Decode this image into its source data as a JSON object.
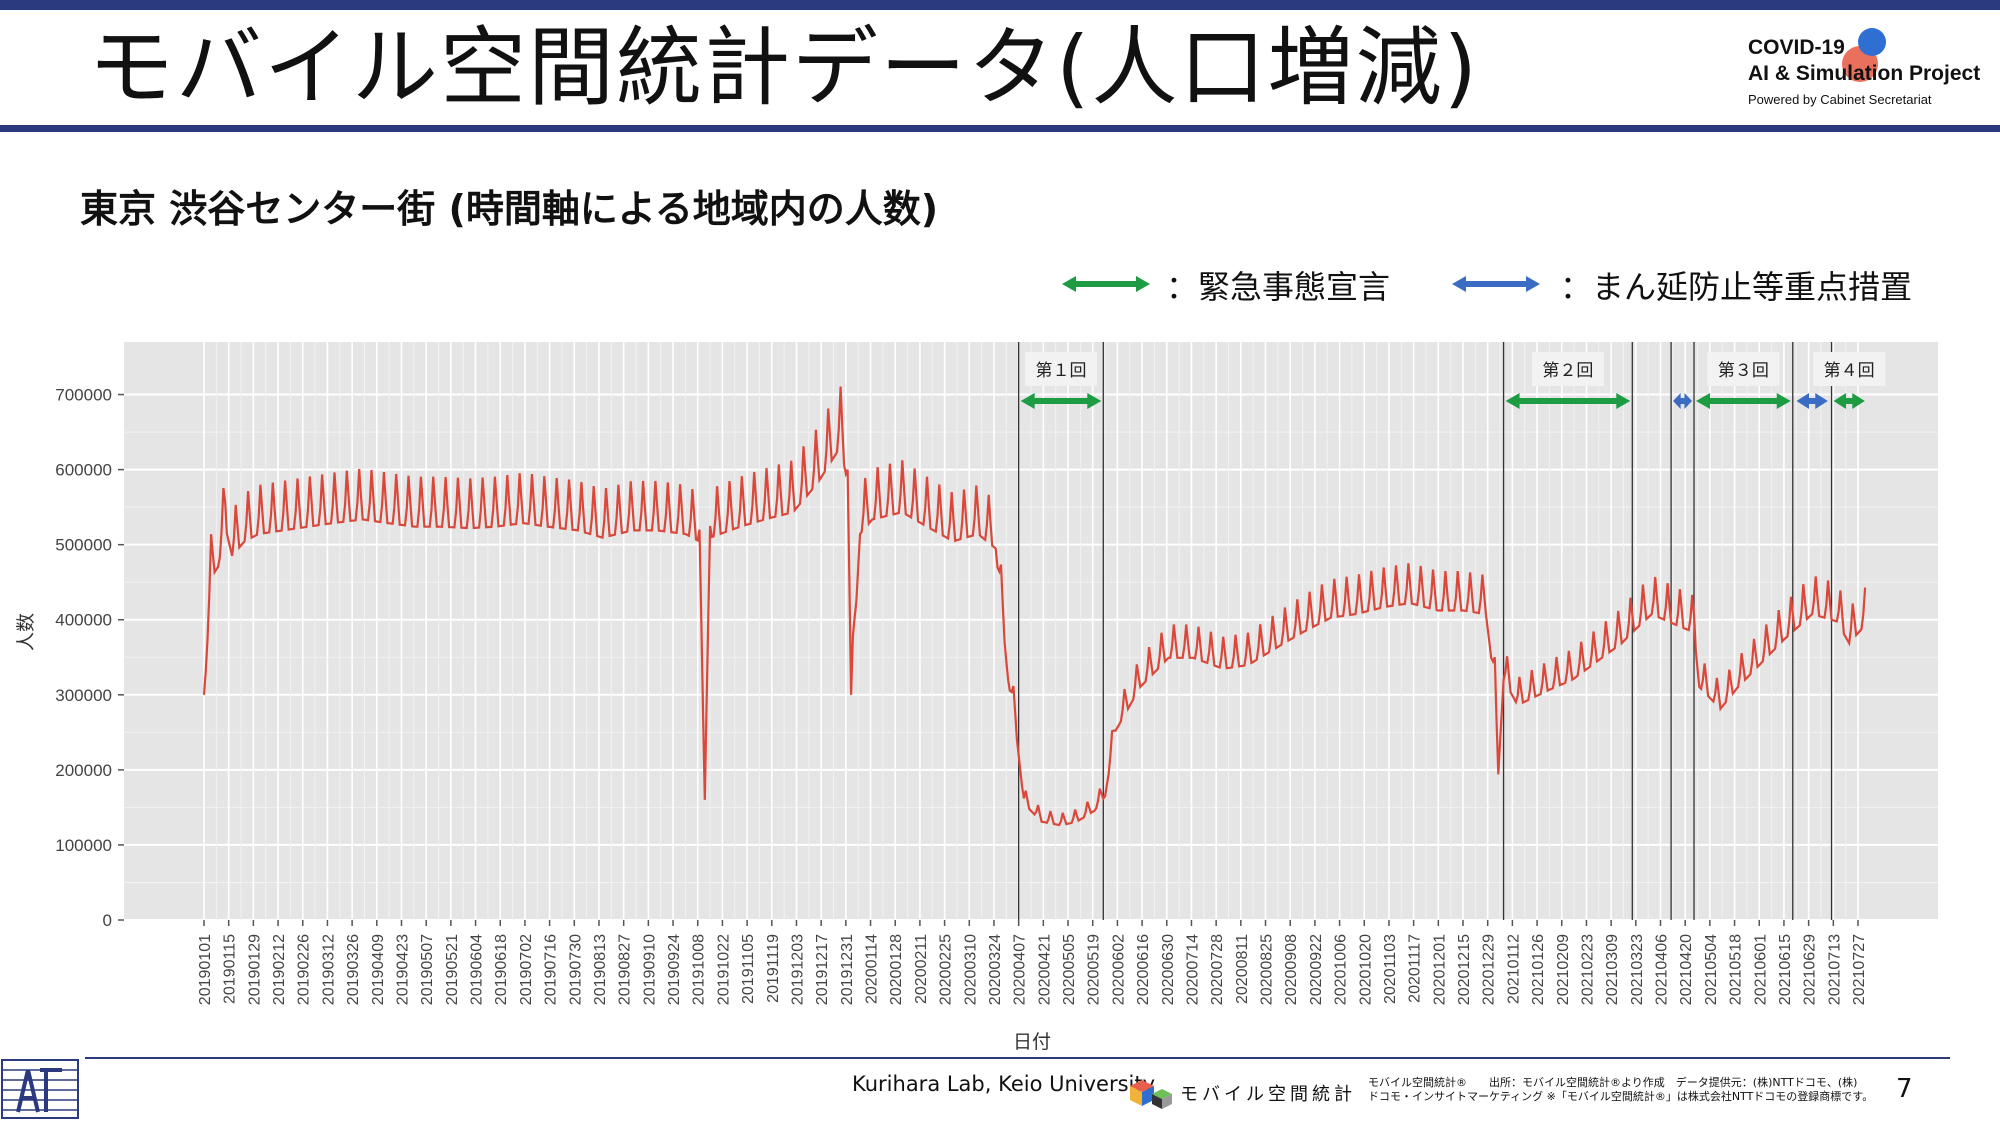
{
  "slide": {
    "title": "モバイル空間統計データ(人口増減)",
    "subtitle": "東京 渋谷センター街 (時間軸による地域内の人数)",
    "page_number": "7"
  },
  "brand": {
    "line1": "COVID-19",
    "line2": "AI & Simulation Project",
    "line3": "Powered by Cabinet Secretariat"
  },
  "legend": {
    "emergency_label": "：緊急事態宣言",
    "emergency_color": "#1e9c44",
    "priority_label": "：まん延防止等重点措置",
    "priority_color": "#3b6cc4"
  },
  "footer": {
    "lab": "Kurihara Lab, Keio University",
    "mobile_logo_text": "モバイル空間統計",
    "source_line1": "モバイル空間統計®　　出所：モバイル空間統計®より作成　データ提供元：(株)NTTドコモ、(株)",
    "source_line2": "ドコモ・インサイトマーケティング ※「モバイル空間統計®」は株式会社NTTドコモの登録商標です。"
  },
  "chart_data": {
    "type": "line",
    "xlabel": "日付",
    "ylabel": "人数",
    "ylim": [
      0,
      770000
    ],
    "yticks": [
      0,
      100000,
      200000,
      300000,
      400000,
      500000,
      600000,
      700000
    ],
    "ytick_labels": [
      "0",
      "100000",
      "200000",
      "300000",
      "400000",
      "500000",
      "600000",
      "700000"
    ],
    "x_start": "2019-01-01",
    "x_end": "2021-08-01",
    "xtick_labels": [
      "20190101",
      "20190115",
      "20190129",
      "20190212",
      "20190226",
      "20190312",
      "20190326",
      "20190409",
      "20190423",
      "20190507",
      "20190521",
      "20190604",
      "20190618",
      "20190702",
      "20190716",
      "20190730",
      "20190813",
      "20190827",
      "20190910",
      "20190924",
      "20191008",
      "20191022",
      "20191105",
      "20191119",
      "20191203",
      "20191217",
      "20191231",
      "20200114",
      "20200128",
      "20200211",
      "20200225",
      "20200310",
      "20200324",
      "20200407",
      "20200421",
      "20200505",
      "20200519",
      "20200602",
      "20200616",
      "20200630",
      "20200714",
      "20200728",
      "20200811",
      "20200825",
      "20200908",
      "20200922",
      "20201006",
      "20201020",
      "20201103",
      "20201117",
      "20201201",
      "20201215",
      "20201229",
      "20210112",
      "20210126",
      "20210209",
      "20210223",
      "20210309",
      "20210323",
      "20210406",
      "20210420",
      "20210504",
      "20210518",
      "20210601",
      "20210615",
      "20210629",
      "20210713",
      "20210727"
    ],
    "grid": true,
    "background": "#e5e5e5",
    "series": [
      {
        "color": "#d9483b",
        "points": [
          [
            "2019-01-01",
            300000
          ],
          [
            "2019-01-05",
            470000
          ],
          [
            "2019-01-09",
            485000
          ],
          [
            "2019-01-13",
            540000
          ],
          [
            "2019-01-17",
            500000
          ],
          [
            "2019-01-24",
            520000
          ],
          [
            "2019-02-01",
            530000
          ],
          [
            "2019-02-15",
            535000
          ],
          [
            "2019-03-01",
            540000
          ],
          [
            "2019-03-15",
            545000
          ],
          [
            "2019-04-01",
            550000
          ],
          [
            "2019-04-15",
            545000
          ],
          [
            "2019-05-01",
            540000
          ],
          [
            "2019-05-15",
            540000
          ],
          [
            "2019-06-01",
            538000
          ],
          [
            "2019-06-15",
            540000
          ],
          [
            "2019-07-01",
            545000
          ],
          [
            "2019-07-15",
            540000
          ],
          [
            "2019-08-01",
            535000
          ],
          [
            "2019-08-15",
            525000
          ],
          [
            "2019-09-01",
            535000
          ],
          [
            "2019-09-15",
            535000
          ],
          [
            "2019-10-01",
            530000
          ],
          [
            "2019-10-09",
            520000
          ],
          [
            "2019-10-12",
            160000
          ],
          [
            "2019-10-15",
            525000
          ],
          [
            "2019-11-01",
            540000
          ],
          [
            "2019-11-15",
            550000
          ],
          [
            "2019-12-01",
            560000
          ],
          [
            "2019-12-15",
            600000
          ],
          [
            "2019-12-28",
            650000
          ],
          [
            "2020-01-01",
            600000
          ],
          [
            "2020-01-03",
            300000
          ],
          [
            "2020-01-08",
            530000
          ],
          [
            "2020-01-15",
            550000
          ],
          [
            "2020-02-01",
            560000
          ],
          [
            "2020-02-15",
            540000
          ],
          [
            "2020-03-01",
            520000
          ],
          [
            "2020-03-15",
            530000
          ],
          [
            "2020-03-25",
            510000
          ],
          [
            "2020-04-01",
            330000
          ],
          [
            "2020-04-05",
            270000
          ],
          [
            "2020-04-10",
            160000
          ],
          [
            "2020-04-20",
            135000
          ],
          [
            "2020-05-01",
            130000
          ],
          [
            "2020-05-10",
            135000
          ],
          [
            "2020-05-20",
            150000
          ],
          [
            "2020-05-26",
            170000
          ],
          [
            "2020-06-01",
            260000
          ],
          [
            "2020-06-15",
            320000
          ],
          [
            "2020-07-01",
            360000
          ],
          [
            "2020-07-15",
            360000
          ],
          [
            "2020-08-01",
            345000
          ],
          [
            "2020-08-15",
            350000
          ],
          [
            "2020-09-01",
            375000
          ],
          [
            "2020-09-15",
            395000
          ],
          [
            "2020-10-01",
            415000
          ],
          [
            "2020-10-15",
            420000
          ],
          [
            "2020-11-01",
            430000
          ],
          [
            "2020-11-15",
            435000
          ],
          [
            "2020-12-01",
            425000
          ],
          [
            "2020-12-15",
            425000
          ],
          [
            "2020-12-28",
            420000
          ],
          [
            "2021-01-02",
            320000
          ],
          [
            "2021-01-04",
            200000
          ],
          [
            "2021-01-07",
            330000
          ],
          [
            "2021-01-15",
            295000
          ],
          [
            "2021-02-01",
            315000
          ],
          [
            "2021-02-15",
            330000
          ],
          [
            "2021-03-01",
            355000
          ],
          [
            "2021-03-15",
            380000
          ],
          [
            "2021-03-21",
            395000
          ],
          [
            "2021-04-01",
            420000
          ],
          [
            "2021-04-15",
            405000
          ],
          [
            "2021-04-25",
            395000
          ],
          [
            "2021-04-28",
            320000
          ],
          [
            "2021-05-10",
            290000
          ],
          [
            "2021-05-20",
            320000
          ],
          [
            "2021-06-01",
            350000
          ],
          [
            "2021-06-15",
            385000
          ],
          [
            "2021-07-01",
            420000
          ],
          [
            "2021-07-15",
            410000
          ],
          [
            "2021-07-22",
            380000
          ],
          [
            "2021-07-31",
            405000
          ]
        ]
      }
    ],
    "period_lines": [
      "2020-04-07",
      "2020-05-25",
      "2021-01-07",
      "2021-03-21",
      "2021-04-12",
      "2021-04-25",
      "2021-06-20",
      "2021-07-12"
    ],
    "periods": [
      {
        "label": "第１回",
        "kind": "emergency",
        "start": "2020-04-07",
        "end": "2020-05-25"
      },
      {
        "label": "第２回",
        "kind": "emergency",
        "start": "2021-01-07",
        "end": "2021-03-21"
      },
      {
        "kind": "priority",
        "start": "2021-04-12",
        "end": "2021-04-25"
      },
      {
        "label": "第３回",
        "kind": "emergency",
        "start": "2021-04-25",
        "end": "2021-06-20"
      },
      {
        "kind": "priority",
        "start": "2021-06-21",
        "end": "2021-07-11"
      },
      {
        "label": "第４回",
        "kind": "emergency",
        "start": "2021-07-12",
        "end": "2021-08-01"
      }
    ]
  }
}
